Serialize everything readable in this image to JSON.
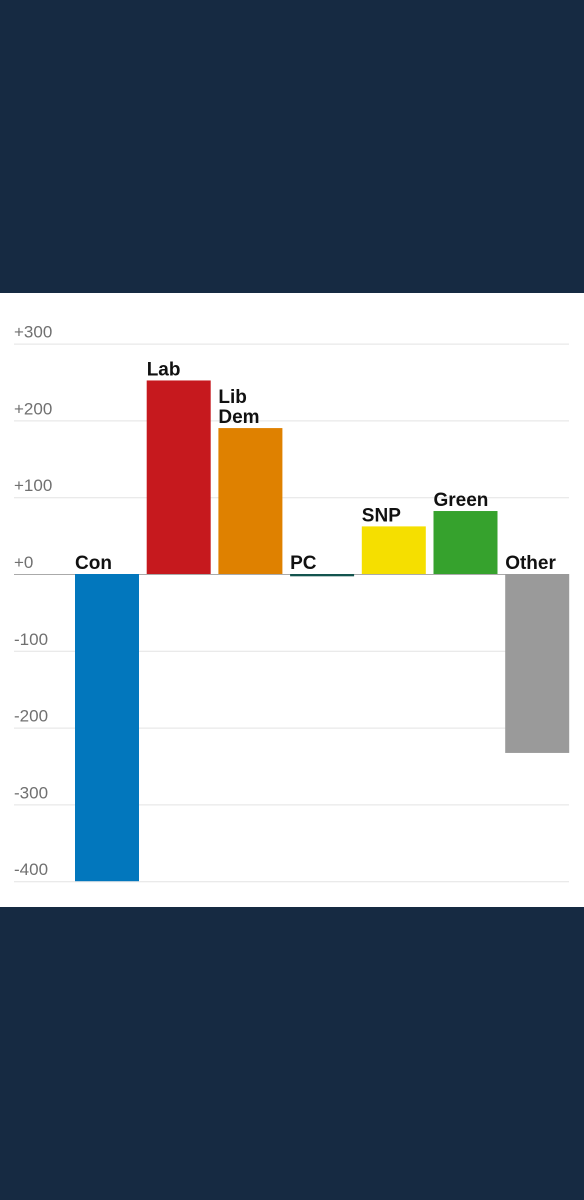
{
  "chart_data": {
    "type": "bar",
    "categories": [
      "Con",
      "Lab",
      "Lib Dem",
      "PC",
      "SNP",
      "Green",
      "Other"
    ],
    "values": [
      -400,
      252,
      190,
      -3,
      62,
      82,
      -233
    ],
    "colors": [
      "#0277bd",
      "#c6191e",
      "#df8100",
      "#13544e",
      "#f5df00",
      "#36a22d",
      "#9a9a9a"
    ],
    "yticks": [
      "+300",
      "+200",
      "+100",
      "+0",
      "-100",
      "-200",
      "-300",
      "-400"
    ],
    "ytick_values": [
      300,
      200,
      100,
      0,
      -100,
      -200,
      -300,
      -400
    ],
    "ylim": [
      -400,
      300
    ],
    "grid": true,
    "title": "",
    "xlabel": "",
    "ylabel": ""
  }
}
